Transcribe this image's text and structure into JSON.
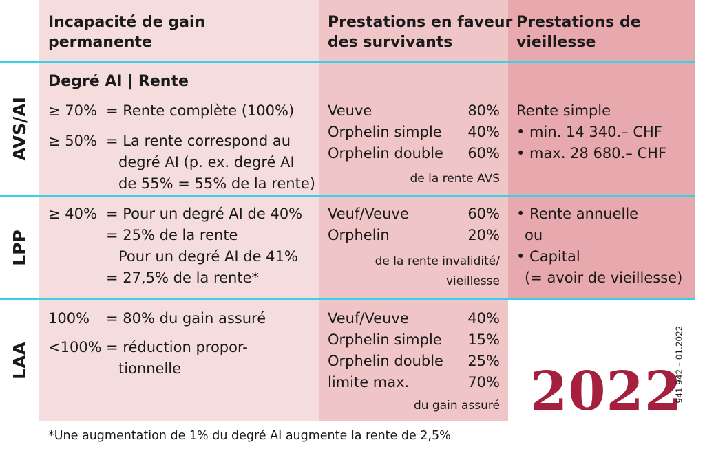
{
  "headers": {
    "col1": [
      "Incapacité de gain",
      "permanente"
    ],
    "col2": [
      "Prestations en faveur",
      "des survivants"
    ],
    "col3": [
      "Prestations de",
      "vieillesse"
    ]
  },
  "rows": {
    "avs": {
      "label": "AVS/AI",
      "subheading": "Degré AI | Rente",
      "c1": [
        {
          "k": "≥ 70%",
          "v": [
            "= Rente complète (100%)"
          ]
        },
        {
          "k": "≥ 50%",
          "v": [
            "= La rente correspond au",
            "degré AI (p. ex. degré AI",
            "de 55% = 55% de la rente)"
          ]
        }
      ],
      "c2": [
        {
          "l": "Veuve",
          "p": "80%"
        },
        {
          "l": "Orphelin simple",
          "p": "40%"
        },
        {
          "l": "Orphelin double",
          "p": "60%"
        }
      ],
      "c2_note": "de la rente AVS",
      "c3": [
        "Rente simple",
        "• min.  14 340.– CHF",
        "• max. 28 680.– CHF"
      ]
    },
    "lpp": {
      "label": "LPP",
      "c1": {
        "k": "≥ 40%",
        "v": [
          "= Pour un degré AI de 40%",
          "= 25% de la rente",
          "Pour un degré AI de 41%",
          "= 27,5% de la rente*"
        ]
      },
      "c2": [
        {
          "l": "Veuf/Veuve",
          "p": "60%"
        },
        {
          "l": "Orphelin",
          "p": "20%"
        }
      ],
      "c2_note": [
        "de la rente invalidité/",
        "vieillesse"
      ],
      "c3": [
        "• Rente annuelle",
        "ou",
        "• Capital",
        "(= avoir de vieillesse)"
      ]
    },
    "laa": {
      "label": "LAA",
      "c1": [
        {
          "k": "100%",
          "v": [
            "= 80% du gain assuré"
          ]
        },
        {
          "k": "<100%",
          "v": [
            "= réduction propor-",
            "tionnelle"
          ]
        }
      ],
      "c2": [
        {
          "l": "Veuf/Veuve",
          "p": "40%"
        },
        {
          "l": "Orphelin simple",
          "p": "15%"
        },
        {
          "l": "Orphelin double",
          "p": "25%"
        },
        {
          "l": "limite max.",
          "p": "70%"
        }
      ],
      "c2_note": "du gain assuré"
    }
  },
  "footnote": "*Une augmentation de 1% du degré AI augmente la rente de 2,5%",
  "year": "2022",
  "doc_code": "941 942 – 01.2022",
  "colors": {
    "col1": "#f6dddd",
    "col2": "#efc5c7",
    "col3": "#e7a9ad",
    "lines": "#3ad0e6",
    "year": "#a51f3f"
  }
}
